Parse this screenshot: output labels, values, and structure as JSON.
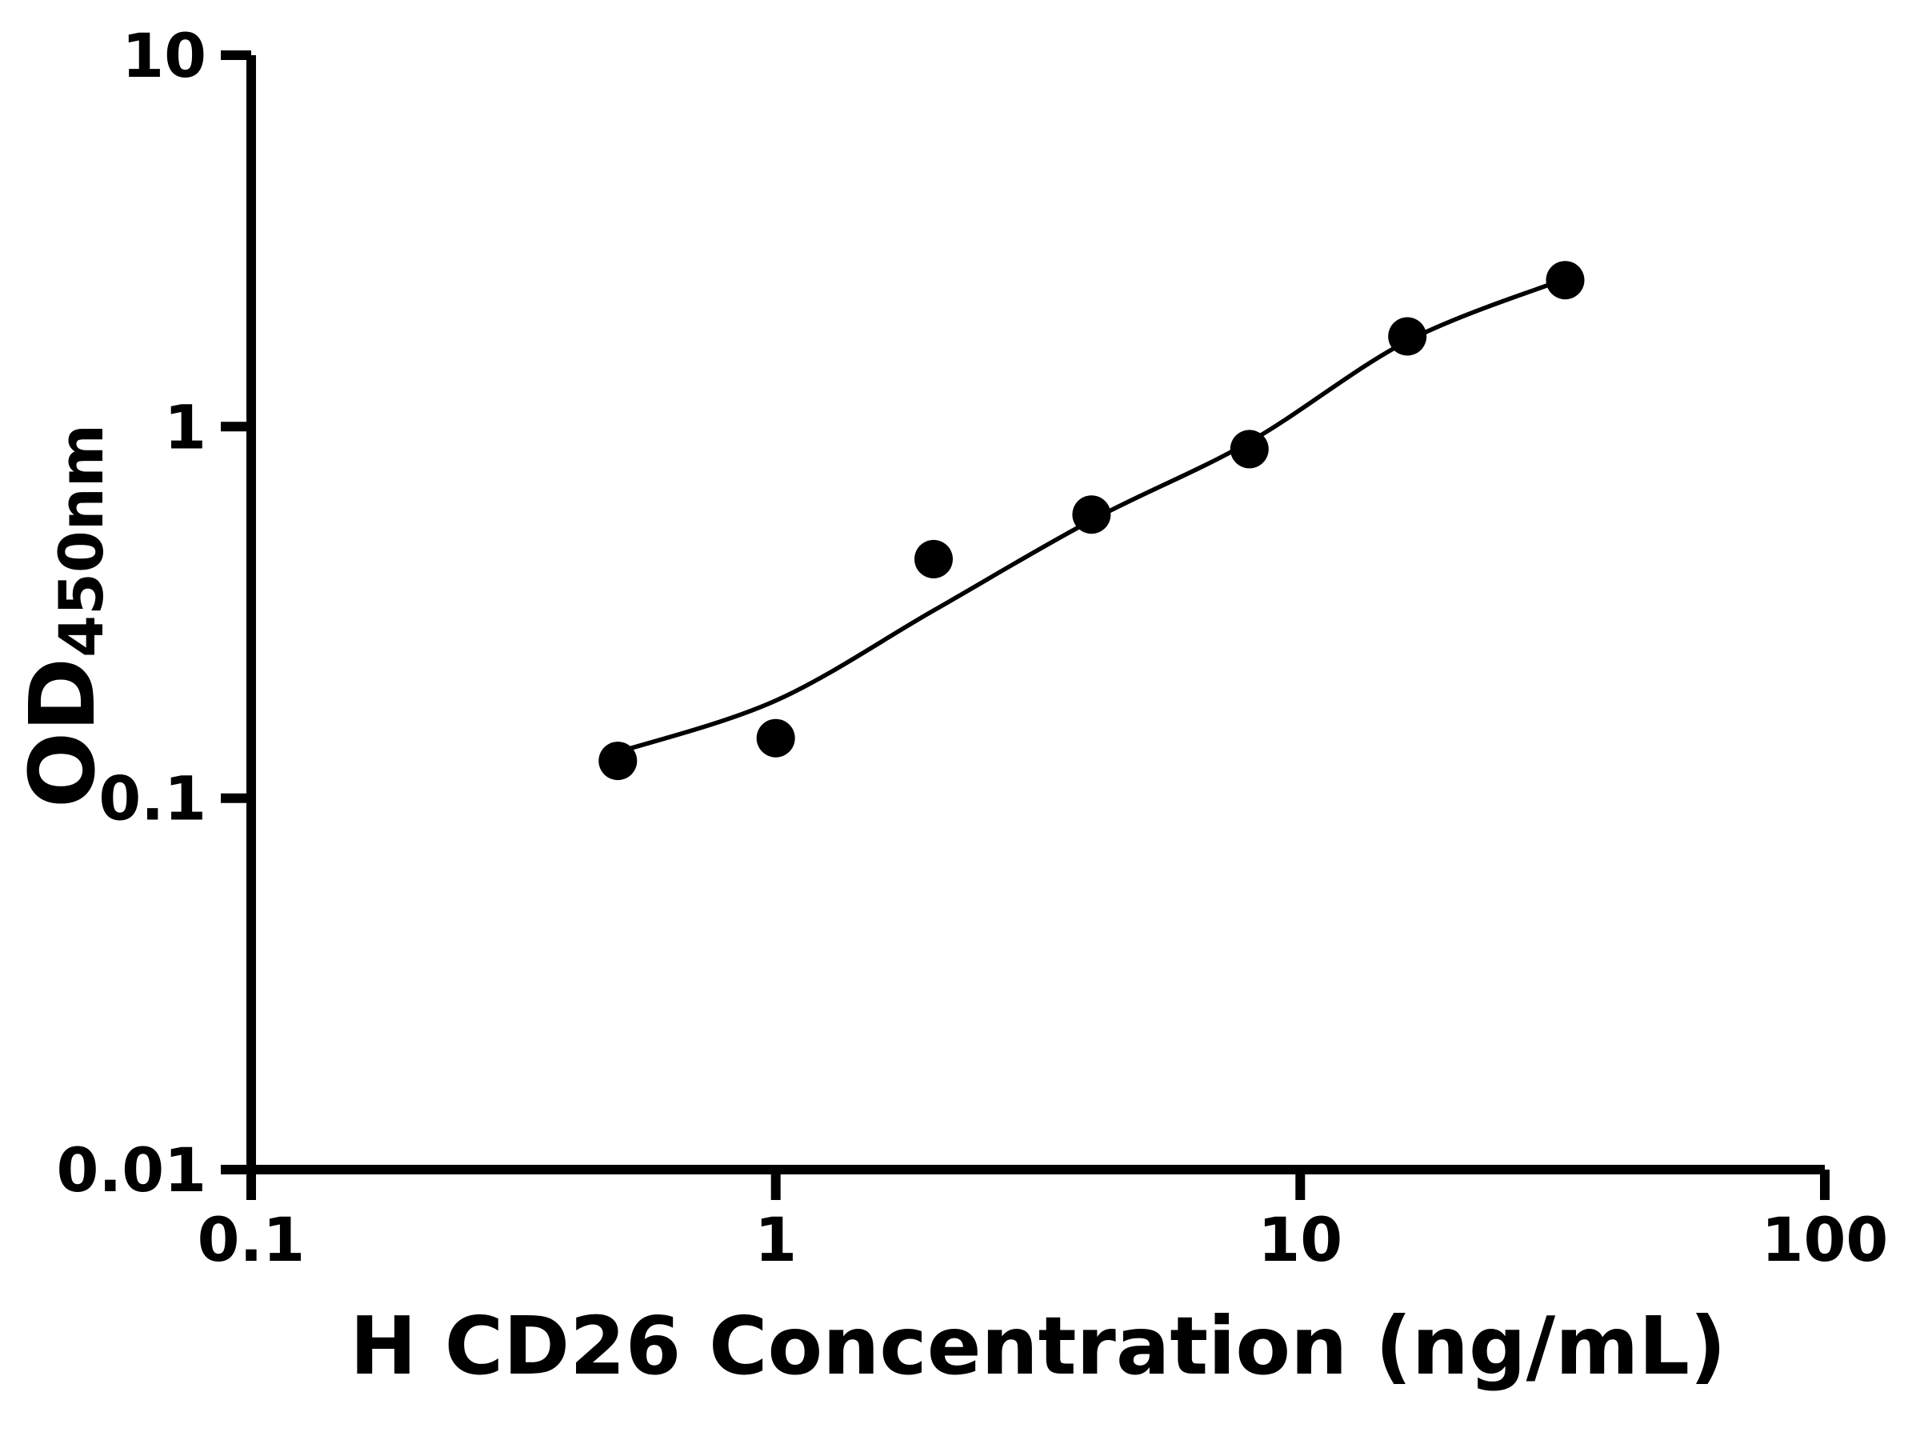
{
  "chart_data": {
    "type": "scatter",
    "title": "",
    "xlabel": "H CD26 Concentration (ng/mL)",
    "ylabel": "OD",
    "ylabel_subscript": "450nm",
    "x_scale": "log",
    "y_scale": "log",
    "xlim": [
      0.1,
      100
    ],
    "ylim": [
      0.01,
      10
    ],
    "x_ticks": [
      0.1,
      1,
      10,
      100
    ],
    "x_tick_labels": [
      "0.1",
      "1",
      "10",
      "100"
    ],
    "y_ticks": [
      0.01,
      0.1,
      1,
      10
    ],
    "y_tick_labels": [
      "0.01",
      "0.1",
      "1",
      "10"
    ],
    "grid": false,
    "legend": "none",
    "axis_color": "#000000",
    "series": [
      {
        "name": "standard-points",
        "marker": "filled-circle",
        "color": "#000000",
        "x": [
          0.5,
          1,
          2,
          4,
          8,
          16,
          32
        ],
        "y": [
          0.126,
          0.145,
          0.44,
          0.58,
          0.87,
          1.75,
          2.48
        ]
      }
    ],
    "fit_curve": {
      "name": "4pl-fit-curve",
      "color": "#000000",
      "x": [
        0.5,
        1,
        2,
        4,
        8,
        16,
        32
      ],
      "y": [
        0.133,
        0.183,
        0.32,
        0.56,
        0.91,
        1.7,
        2.5
      ]
    }
  }
}
